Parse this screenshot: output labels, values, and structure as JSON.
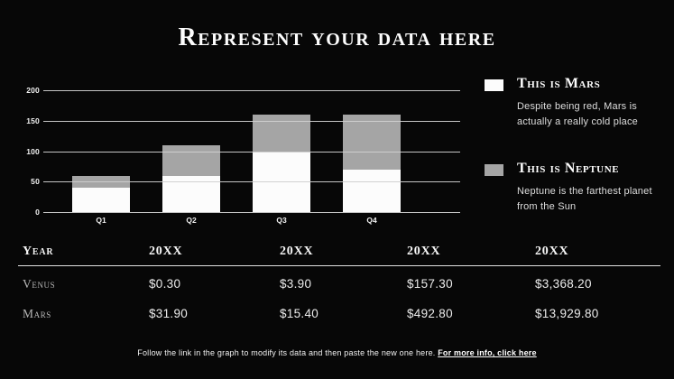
{
  "title": "Represent your data here",
  "chart_data": {
    "type": "bar",
    "stacked": true,
    "categories": [
      "Q1",
      "Q2",
      "Q3",
      "Q4"
    ],
    "series": [
      {
        "name": "This is Mars",
        "color": "#fcfcfc",
        "values": [
          40,
          60,
          100,
          70
        ]
      },
      {
        "name": "This is Neptune",
        "color": "#a5a5a5",
        "values": [
          20,
          50,
          60,
          90
        ]
      }
    ],
    "title": "",
    "xlabel": "",
    "ylabel": "",
    "ylim": [
      0,
      200
    ],
    "yticks": [
      0,
      50,
      100,
      150,
      200
    ],
    "grid": true,
    "legend_position": "right"
  },
  "legend": {
    "items": [
      {
        "swatch_color": "#fcfcfc",
        "title": "This is Mars",
        "description": "Despite being red, Mars is actually a really cold place"
      },
      {
        "swatch_color": "#a5a5a5",
        "title": "This is Neptune",
        "description": "Neptune is the farthest planet from the Sun"
      }
    ]
  },
  "table": {
    "headers": [
      "Year",
      "20XX",
      "20XX",
      "20XX",
      "20XX"
    ],
    "rows": [
      {
        "label": "Venus",
        "values": [
          "$0.30",
          "$3.90",
          "$157.30",
          "$3,368.20"
        ]
      },
      {
        "label": "Mars",
        "values": [
          "$31.90",
          "$15.40",
          "$492.80",
          "$13,929.80"
        ]
      }
    ]
  },
  "footer": {
    "text": "Follow the link in the graph to modify its data and then paste the new one here.",
    "link": "For more info, click here"
  },
  "colors": {
    "background": "#070707",
    "bar_white": "#fcfcfc",
    "bar_gray": "#a5a5a5",
    "gridline": "#cfcfcf",
    "text_primary": "#fdfdfd",
    "text_muted": "#b8b8b8"
  }
}
